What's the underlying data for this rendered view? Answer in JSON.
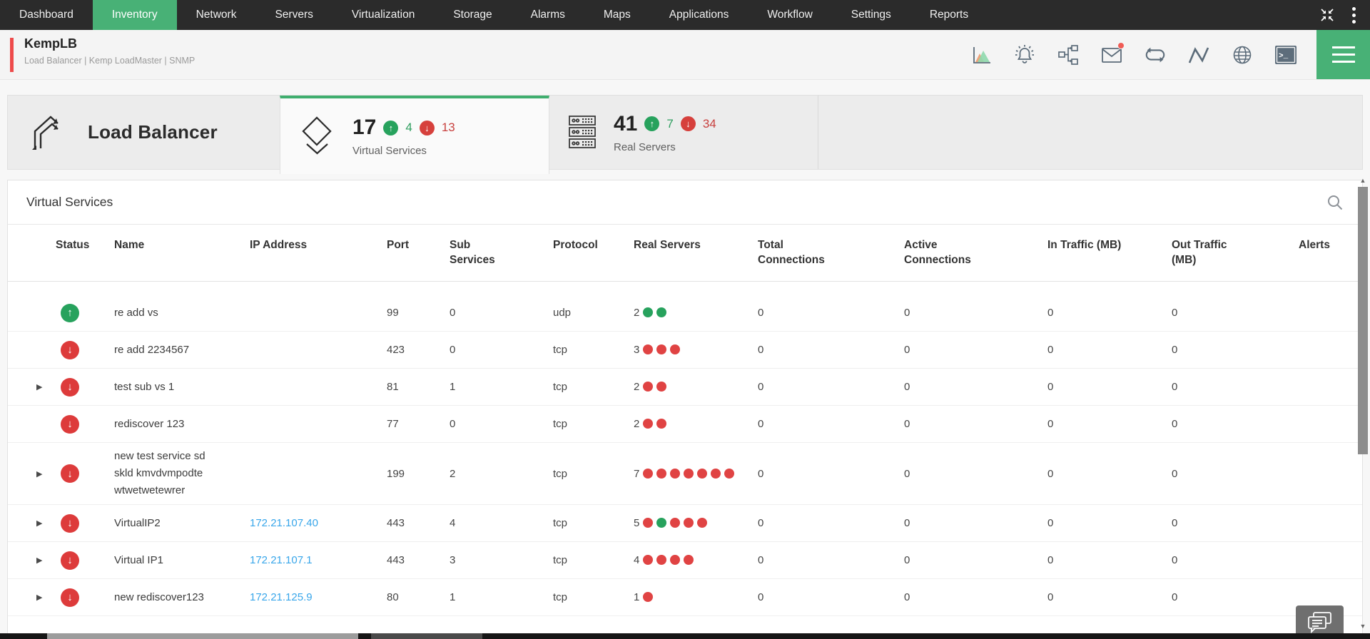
{
  "topnav": {
    "items": [
      {
        "label": "Dashboard",
        "state": ""
      },
      {
        "label": "Inventory",
        "state": "active"
      },
      {
        "label": "Network",
        "state": ""
      },
      {
        "label": "Servers",
        "state": ""
      },
      {
        "label": "Virtualization",
        "state": ""
      },
      {
        "label": "Storage",
        "state": ""
      },
      {
        "label": "Alarms",
        "state": ""
      },
      {
        "label": "Maps",
        "state": ""
      },
      {
        "label": "Applications",
        "state": ""
      },
      {
        "label": "Workflow",
        "state": ""
      },
      {
        "label": "Settings",
        "state": ""
      },
      {
        "label": "Reports",
        "state": ""
      }
    ]
  },
  "device_header": {
    "title": "KempLB",
    "subtitle": "Load Balancer | Kemp LoadMaster | SNMP",
    "accent_color": "#ee4b4b",
    "action_icons": [
      "area-chart",
      "alarm-bell",
      "topology",
      "mail",
      "sync-loop",
      "performance-graph",
      "globe",
      "terminal"
    ],
    "mail_has_notification": true
  },
  "overview": {
    "device_type_label": "Load Balancer",
    "tabs": [
      {
        "label": "Virtual Services",
        "count": "17",
        "up_count": "4",
        "down_count": "13",
        "state": "active"
      },
      {
        "label": "Real Servers",
        "count": "41",
        "up_count": "7",
        "down_count": "34",
        "state": ""
      }
    ]
  },
  "panel": {
    "title": "Virtual Services",
    "columns": {
      "status": "Status",
      "name": "Name",
      "ip": "IP Address",
      "port": "Port",
      "sub": "Sub Services",
      "protocol": "Protocol",
      "real_servers": "Real Servers",
      "total": "Total Connections",
      "active": "Active Connections",
      "in_traffic": "In Traffic (MB)",
      "out_traffic": "Out Traffic (MB)",
      "alerts": "Alerts"
    },
    "rows": [
      {
        "expandable": false,
        "status": "up",
        "name": "re add vs",
        "ip": "",
        "port": "99",
        "sub_services": "0",
        "protocol": "udp",
        "rs_count": "2",
        "rs_dots": [
          "green",
          "green"
        ],
        "total_connections": "0",
        "active_connections": "0",
        "in_traffic": "0",
        "out_traffic": "0",
        "alerts": "on"
      },
      {
        "expandable": false,
        "status": "down",
        "name": "re add 2234567",
        "ip": "",
        "port": "423",
        "sub_services": "0",
        "protocol": "tcp",
        "rs_count": "3",
        "rs_dots": [
          "red",
          "red",
          "red"
        ],
        "total_connections": "0",
        "active_connections": "0",
        "in_traffic": "0",
        "out_traffic": "0",
        "alerts": "on"
      },
      {
        "expandable": true,
        "status": "down",
        "name": "test sub vs 1",
        "ip": "",
        "port": "81",
        "sub_services": "1",
        "protocol": "tcp",
        "rs_count": "2",
        "rs_dots": [
          "red",
          "red"
        ],
        "total_connections": "0",
        "active_connections": "0",
        "in_traffic": "0",
        "out_traffic": "0",
        "alerts": "on"
      },
      {
        "expandable": false,
        "status": "down",
        "name": "rediscover 123",
        "ip": "",
        "port": "77",
        "sub_services": "0",
        "protocol": "tcp",
        "rs_count": "2",
        "rs_dots": [
          "red",
          "red"
        ],
        "total_connections": "0",
        "active_connections": "0",
        "in_traffic": "0",
        "out_traffic": "0",
        "alerts": "on"
      },
      {
        "expandable": true,
        "status": "down",
        "name": "new test service sd skld kmvdvmpodte wtwetwetewrer",
        "ip": "",
        "port": "199",
        "sub_services": "2",
        "protocol": "tcp",
        "rs_count": "7",
        "rs_dots": [
          "red",
          "red",
          "red",
          "red",
          "red",
          "red",
          "red"
        ],
        "total_connections": "0",
        "active_connections": "0",
        "in_traffic": "0",
        "out_traffic": "0",
        "alerts": "on"
      },
      {
        "expandable": true,
        "status": "down",
        "name": "VirtualIP2",
        "ip": "172.21.107.40",
        "port": "443",
        "sub_services": "4",
        "protocol": "tcp",
        "rs_count": "5",
        "rs_dots": [
          "red",
          "green",
          "red",
          "red",
          "red"
        ],
        "total_connections": "0",
        "active_connections": "0",
        "in_traffic": "0",
        "out_traffic": "0",
        "alerts": "on"
      },
      {
        "expandable": true,
        "status": "down",
        "name": "Virtual IP1",
        "ip": "172.21.107.1",
        "port": "443",
        "sub_services": "3",
        "protocol": "tcp",
        "rs_count": "4",
        "rs_dots": [
          "red",
          "red",
          "red",
          "red"
        ],
        "total_connections": "0",
        "active_connections": "0",
        "in_traffic": "0",
        "out_traffic": "0",
        "alerts": "on"
      },
      {
        "expandable": true,
        "status": "down",
        "name": "new rediscover123",
        "ip": "172.21.125.9",
        "port": "80",
        "sub_services": "1",
        "protocol": "tcp",
        "rs_count": "1",
        "rs_dots": [
          "red"
        ],
        "total_connections": "0",
        "active_connections": "0",
        "in_traffic": "0",
        "out_traffic": "0",
        "alerts": "on"
      }
    ]
  },
  "colors": {
    "nav_active_green": "#48b176",
    "status_up_green": "#27a25d",
    "status_down_red": "#dd3b3b",
    "link_blue": "#38a6ea",
    "toggle_on_green": "#56c17e",
    "accent_red": "#ee4b4b",
    "topnav_bg": "#2b2b2b"
  }
}
